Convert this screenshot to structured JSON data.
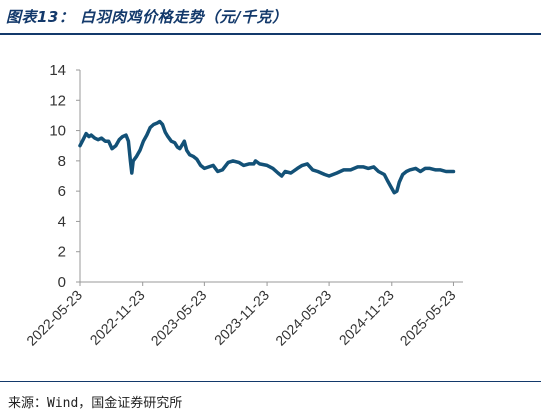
{
  "header": {
    "title": "图表13：  白羽肉鸡价格走势（元/千克）"
  },
  "footer": {
    "source": "来源：Wind，国金证券研究所"
  },
  "colors": {
    "title": "#13396b",
    "line": "#135177",
    "rule": "#13396b"
  },
  "chart_data": {
    "type": "line",
    "title": "白羽肉鸡价格走势（元/千克）",
    "xlabel": "",
    "ylabel": "",
    "ylim": [
      0,
      14
    ],
    "yticks": [
      0,
      2,
      4,
      6,
      8,
      10,
      12,
      14
    ],
    "xticks": [
      "2022-05-23",
      "2022-11-23",
      "2023-05-23",
      "2023-11-23",
      "2024-05-23",
      "2024-11-23",
      "2025-05-23"
    ],
    "x_range": [
      "2022-05-23",
      "2025-06-20"
    ],
    "grid": false,
    "legend": "none",
    "series": [
      {
        "values": [
          [
            "2022-05-23",
            9.0
          ],
          [
            "2022-06-01",
            9.4
          ],
          [
            "2022-06-10",
            9.8
          ],
          [
            "2022-06-18",
            9.6
          ],
          [
            "2022-06-25",
            9.7
          ],
          [
            "2022-07-05",
            9.5
          ],
          [
            "2022-07-15",
            9.4
          ],
          [
            "2022-07-25",
            9.5
          ],
          [
            "2022-08-05",
            9.3
          ],
          [
            "2022-08-15",
            9.3
          ],
          [
            "2022-08-25",
            8.8
          ],
          [
            "2022-09-05",
            9.0
          ],
          [
            "2022-09-15",
            9.4
          ],
          [
            "2022-09-25",
            9.6
          ],
          [
            "2022-10-05",
            9.7
          ],
          [
            "2022-10-12",
            9.3
          ],
          [
            "2022-10-18",
            8.0
          ],
          [
            "2022-10-22",
            7.2
          ],
          [
            "2022-10-26",
            8.0
          ],
          [
            "2022-11-05",
            8.3
          ],
          [
            "2022-11-15",
            8.7
          ],
          [
            "2022-11-25",
            9.3
          ],
          [
            "2022-12-05",
            9.7
          ],
          [
            "2022-12-15",
            10.2
          ],
          [
            "2022-12-25",
            10.4
          ],
          [
            "2023-01-05",
            10.5
          ],
          [
            "2023-01-12",
            10.6
          ],
          [
            "2023-01-20",
            10.4
          ],
          [
            "2023-01-28",
            9.9
          ],
          [
            "2023-02-05",
            9.6
          ],
          [
            "2023-02-15",
            9.3
          ],
          [
            "2023-02-25",
            9.2
          ],
          [
            "2023-03-05",
            8.9
          ],
          [
            "2023-03-12",
            8.8
          ],
          [
            "2023-03-20",
            9.1
          ],
          [
            "2023-03-25",
            9.3
          ],
          [
            "2023-04-01",
            8.7
          ],
          [
            "2023-04-10",
            8.4
          ],
          [
            "2023-04-20",
            8.3
          ],
          [
            "2023-05-01",
            8.1
          ],
          [
            "2023-05-12",
            7.7
          ],
          [
            "2023-05-23",
            7.5
          ],
          [
            "2023-06-05",
            7.6
          ],
          [
            "2023-06-18",
            7.7
          ],
          [
            "2023-07-01",
            7.3
          ],
          [
            "2023-07-15",
            7.4
          ],
          [
            "2023-08-01",
            7.9
          ],
          [
            "2023-08-15",
            8.0
          ],
          [
            "2023-09-01",
            7.9
          ],
          [
            "2023-09-15",
            7.7
          ],
          [
            "2023-10-01",
            7.8
          ],
          [
            "2023-10-15",
            7.8
          ],
          [
            "2023-10-20",
            8.0
          ],
          [
            "2023-11-01",
            7.8
          ],
          [
            "2023-11-23",
            7.7
          ],
          [
            "2023-12-10",
            7.5
          ],
          [
            "2023-12-25",
            7.2
          ],
          [
            "2024-01-05",
            7.0
          ],
          [
            "2024-01-15",
            7.3
          ],
          [
            "2024-02-01",
            7.2
          ],
          [
            "2024-02-20",
            7.5
          ],
          [
            "2024-03-05",
            7.7
          ],
          [
            "2024-03-20",
            7.8
          ],
          [
            "2024-04-05",
            7.4
          ],
          [
            "2024-04-20",
            7.3
          ],
          [
            "2024-05-10",
            7.1
          ],
          [
            "2024-05-23",
            7.0
          ],
          [
            "2024-06-15",
            7.2
          ],
          [
            "2024-07-05",
            7.4
          ],
          [
            "2024-07-25",
            7.4
          ],
          [
            "2024-08-15",
            7.6
          ],
          [
            "2024-09-01",
            7.6
          ],
          [
            "2024-09-15",
            7.5
          ],
          [
            "2024-10-01",
            7.6
          ],
          [
            "2024-10-15",
            7.3
          ],
          [
            "2024-11-01",
            7.1
          ],
          [
            "2024-11-10",
            6.7
          ],
          [
            "2024-11-20",
            6.3
          ],
          [
            "2024-11-30",
            5.9
          ],
          [
            "2024-12-08",
            6.0
          ],
          [
            "2024-12-15",
            6.6
          ],
          [
            "2024-12-25",
            7.1
          ],
          [
            "2025-01-05",
            7.3
          ],
          [
            "2025-01-15",
            7.4
          ],
          [
            "2025-02-01",
            7.5
          ],
          [
            "2025-02-15",
            7.3
          ],
          [
            "2025-03-01",
            7.5
          ],
          [
            "2025-03-15",
            7.5
          ],
          [
            "2025-04-01",
            7.4
          ],
          [
            "2025-04-15",
            7.4
          ],
          [
            "2025-05-01",
            7.3
          ],
          [
            "2025-05-15",
            7.3
          ],
          [
            "2025-05-23",
            7.3
          ]
        ]
      }
    ]
  }
}
